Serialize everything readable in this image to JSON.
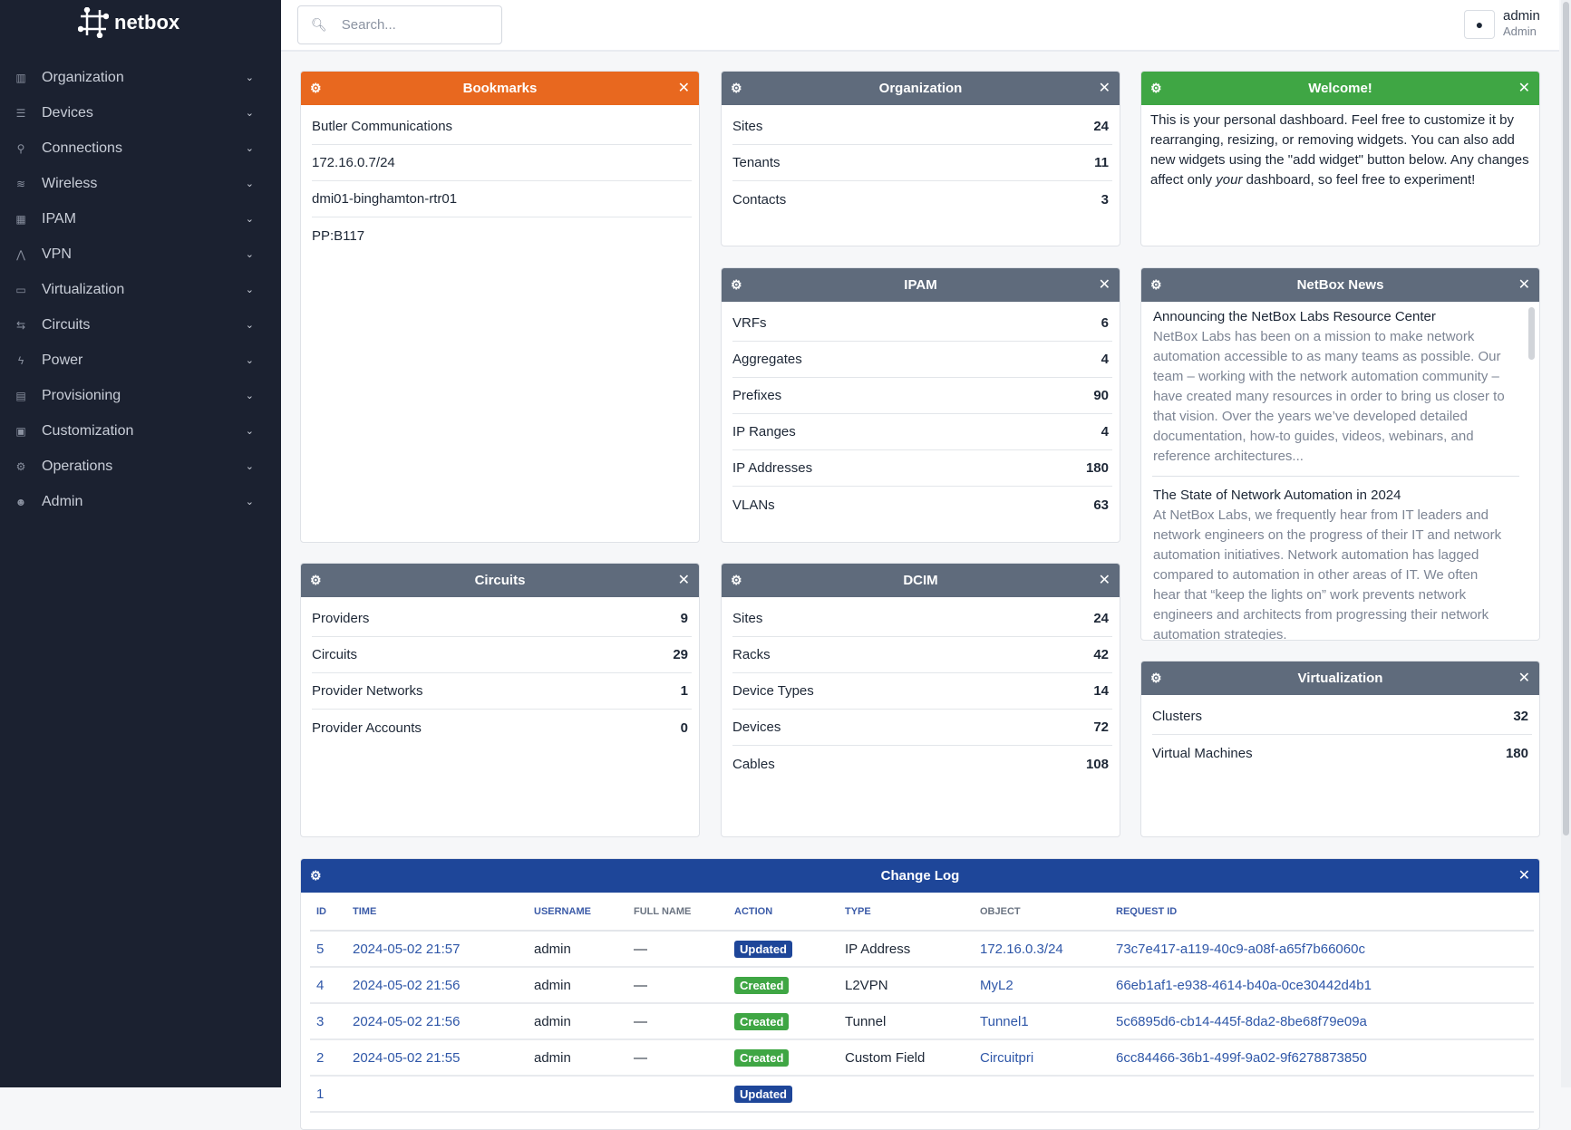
{
  "brand": {
    "name": "netbox"
  },
  "sidebar": {
    "items": [
      {
        "label": "Organization",
        "icon": "building-icon"
      },
      {
        "label": "Devices",
        "icon": "server-icon"
      },
      {
        "label": "Connections",
        "icon": "plug-icon"
      },
      {
        "label": "Wireless",
        "icon": "wifi-icon"
      },
      {
        "label": "IPAM",
        "icon": "counter-icon"
      },
      {
        "label": "VPN",
        "icon": "tree-icon"
      },
      {
        "label": "Virtualization",
        "icon": "monitor-icon"
      },
      {
        "label": "Circuits",
        "icon": "transit-icon"
      },
      {
        "label": "Power",
        "icon": "flash-icon"
      },
      {
        "label": "Provisioning",
        "icon": "file-icon"
      },
      {
        "label": "Customization",
        "icon": "toolbox-icon"
      },
      {
        "label": "Operations",
        "icon": "cogs-icon"
      },
      {
        "label": "Admin",
        "icon": "users-icon"
      }
    ]
  },
  "search": {
    "placeholder": "Search..."
  },
  "user": {
    "name": "admin",
    "role": "Admin"
  },
  "colors": {
    "bookmarks": "#e8681f",
    "welcome": "#3fa644",
    "default": "#5f6b7c",
    "changelog": "#1e4699",
    "updated": "#1e4699",
    "created": "#3fa644"
  },
  "widgets": {
    "bookmarks": {
      "title": "Bookmarks",
      "items": [
        "Butler Communications",
        "172.16.0.7/24",
        "dmi01-binghamton-rtr01",
        "PP:B117"
      ]
    },
    "organization": {
      "title": "Organization",
      "rows": [
        {
          "k": "Sites",
          "v": "24"
        },
        {
          "k": "Tenants",
          "v": "11"
        },
        {
          "k": "Contacts",
          "v": "3"
        }
      ]
    },
    "welcome": {
      "title": "Welcome!",
      "pre": "This is your personal dashboard. Feel free to customize it by rearranging, resizing, or removing widgets. You can also add new widgets using the \"add widget\" button below. Any changes affect only ",
      "em": "your",
      "post": " dashboard, so feel free to experiment!"
    },
    "ipam": {
      "title": "IPAM",
      "rows": [
        {
          "k": "VRFs",
          "v": "6"
        },
        {
          "k": "Aggregates",
          "v": "4"
        },
        {
          "k": "Prefixes",
          "v": "90"
        },
        {
          "k": "IP Ranges",
          "v": "4"
        },
        {
          "k": "IP Addresses",
          "v": "180"
        },
        {
          "k": "VLANs",
          "v": "63"
        }
      ]
    },
    "news": {
      "title": "NetBox News",
      "items": [
        {
          "title": "Announcing the NetBox Labs Resource Center",
          "body": "NetBox Labs has been on a mission to make network automation accessible to as many teams as possible. Our team – working with the network automation community – have created many resources in order to bring us closer to that vision. Over the years we’ve developed detailed documentation, how-to guides, videos, webinars, and reference architectures..."
        },
        {
          "title": "The State of Network Automation in 2024",
          "body": "At NetBox Labs, we frequently hear from IT leaders and network engineers on the progress of their IT and network automation initiatives. Network automation has lagged compared to automation in other areas of IT. We often hear that “keep the lights on” work prevents network engineers and architects from progressing their network automation strategies."
        }
      ]
    },
    "circuits": {
      "title": "Circuits",
      "rows": [
        {
          "k": "Providers",
          "v": "9"
        },
        {
          "k": "Circuits",
          "v": "29"
        },
        {
          "k": "Provider Networks",
          "v": "1"
        },
        {
          "k": "Provider Accounts",
          "v": "0"
        }
      ]
    },
    "dcim": {
      "title": "DCIM",
      "rows": [
        {
          "k": "Sites",
          "v": "24"
        },
        {
          "k": "Racks",
          "v": "42"
        },
        {
          "k": "Device Types",
          "v": "14"
        },
        {
          "k": "Devices",
          "v": "72"
        },
        {
          "k": "Cables",
          "v": "108"
        }
      ]
    },
    "virtualization": {
      "title": "Virtualization",
      "rows": [
        {
          "k": "Clusters",
          "v": "32"
        },
        {
          "k": "Virtual Machines",
          "v": "180"
        }
      ]
    },
    "changelog": {
      "title": "Change Log",
      "columns": [
        "ID",
        "TIME",
        "USERNAME",
        "FULL NAME",
        "ACTION",
        "TYPE",
        "OBJECT",
        "REQUEST ID"
      ],
      "rows": [
        {
          "id": "5",
          "time": "2024-05-02 21:57",
          "user": "admin",
          "full": "—",
          "action": "Updated",
          "type": "IP Address",
          "object": "172.16.0.3/24",
          "req": "73c7e417-a119-40c9-a08f-a65f7b66060c"
        },
        {
          "id": "4",
          "time": "2024-05-02 21:56",
          "user": "admin",
          "full": "—",
          "action": "Created",
          "type": "L2VPN",
          "object": "MyL2",
          "req": "66eb1af1-e938-4614-b40a-0ce30442d4b1"
        },
        {
          "id": "3",
          "time": "2024-05-02 21:56",
          "user": "admin",
          "full": "—",
          "action": "Created",
          "type": "Tunnel",
          "object": "Tunnel1",
          "req": "5c6895d6-cb14-445f-8da2-8be68f79e09a"
        },
        {
          "id": "2",
          "time": "2024-05-02 21:55",
          "user": "admin",
          "full": "—",
          "action": "Created",
          "type": "Custom Field",
          "object": "Circuitpri",
          "req": "6cc84466-36b1-499f-9a02-9f6278873850"
        },
        {
          "id": "1",
          "action": "Updated"
        }
      ]
    }
  }
}
